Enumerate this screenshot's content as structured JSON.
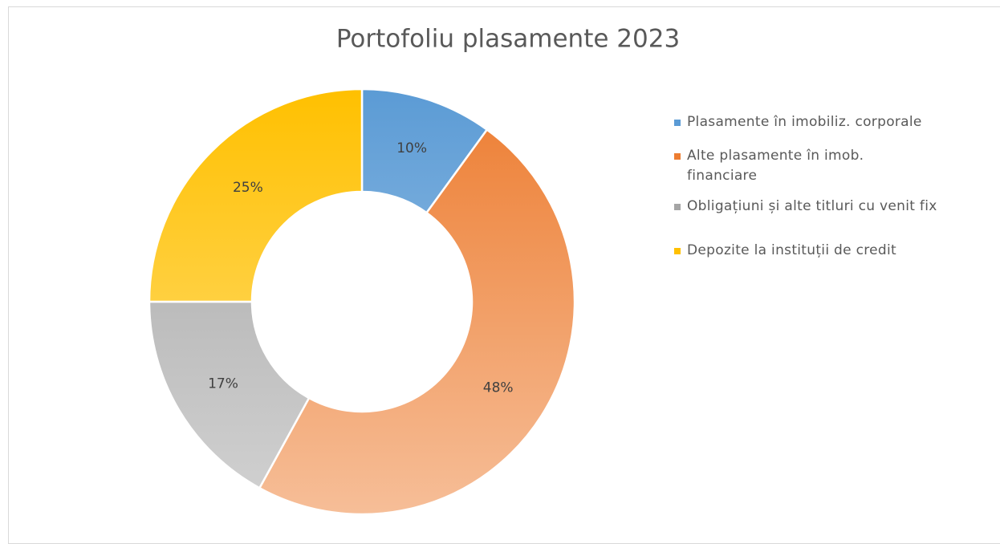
{
  "chart_data": {
    "type": "doughnut",
    "title": "Portofoliu plasamente 2023",
    "categories": [
      "Plasamente în imobiliz. corporale",
      "Alte plasamente în imob. financiare",
      "Obligațiuni și alte titluri cu venit fix",
      "Depozite la instituții de credit"
    ],
    "values": [
      10,
      48,
      17,
      25
    ],
    "value_labels": [
      "10%",
      "48%",
      "17%",
      "25%"
    ],
    "colors": [
      "#5b9bd5",
      "#ed7d31",
      "#a5a5a5",
      "#ffc000"
    ],
    "legend": "right"
  }
}
